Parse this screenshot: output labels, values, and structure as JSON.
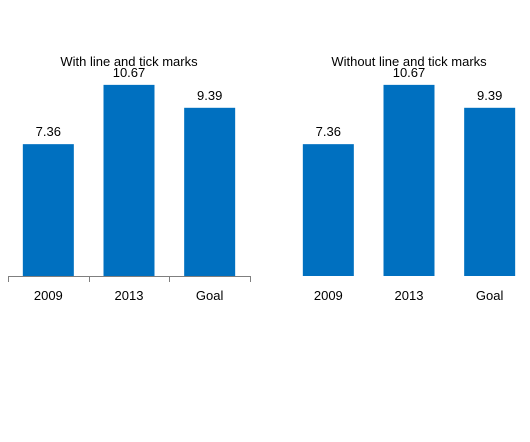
{
  "chart_data": [
    {
      "type": "bar",
      "title": "With line and tick marks",
      "categories": [
        "2009",
        "2013",
        "Goal"
      ],
      "values": [
        7.36,
        10.67,
        9.39
      ],
      "value_labels": [
        "7.36",
        "10.67",
        "9.39"
      ],
      "axis_line": true,
      "tick_marks": true,
      "ylim": [
        0,
        11.5
      ],
      "bar_color": "#0070C0"
    },
    {
      "type": "bar",
      "title": "Without line and tick marks",
      "categories": [
        "2009",
        "2013",
        "Goal"
      ],
      "values": [
        7.36,
        10.67,
        9.39
      ],
      "value_labels": [
        "7.36",
        "10.67",
        "9.39"
      ],
      "axis_line": false,
      "tick_marks": false,
      "ylim": [
        0,
        11.5
      ],
      "bar_color": "#0070C0"
    }
  ]
}
